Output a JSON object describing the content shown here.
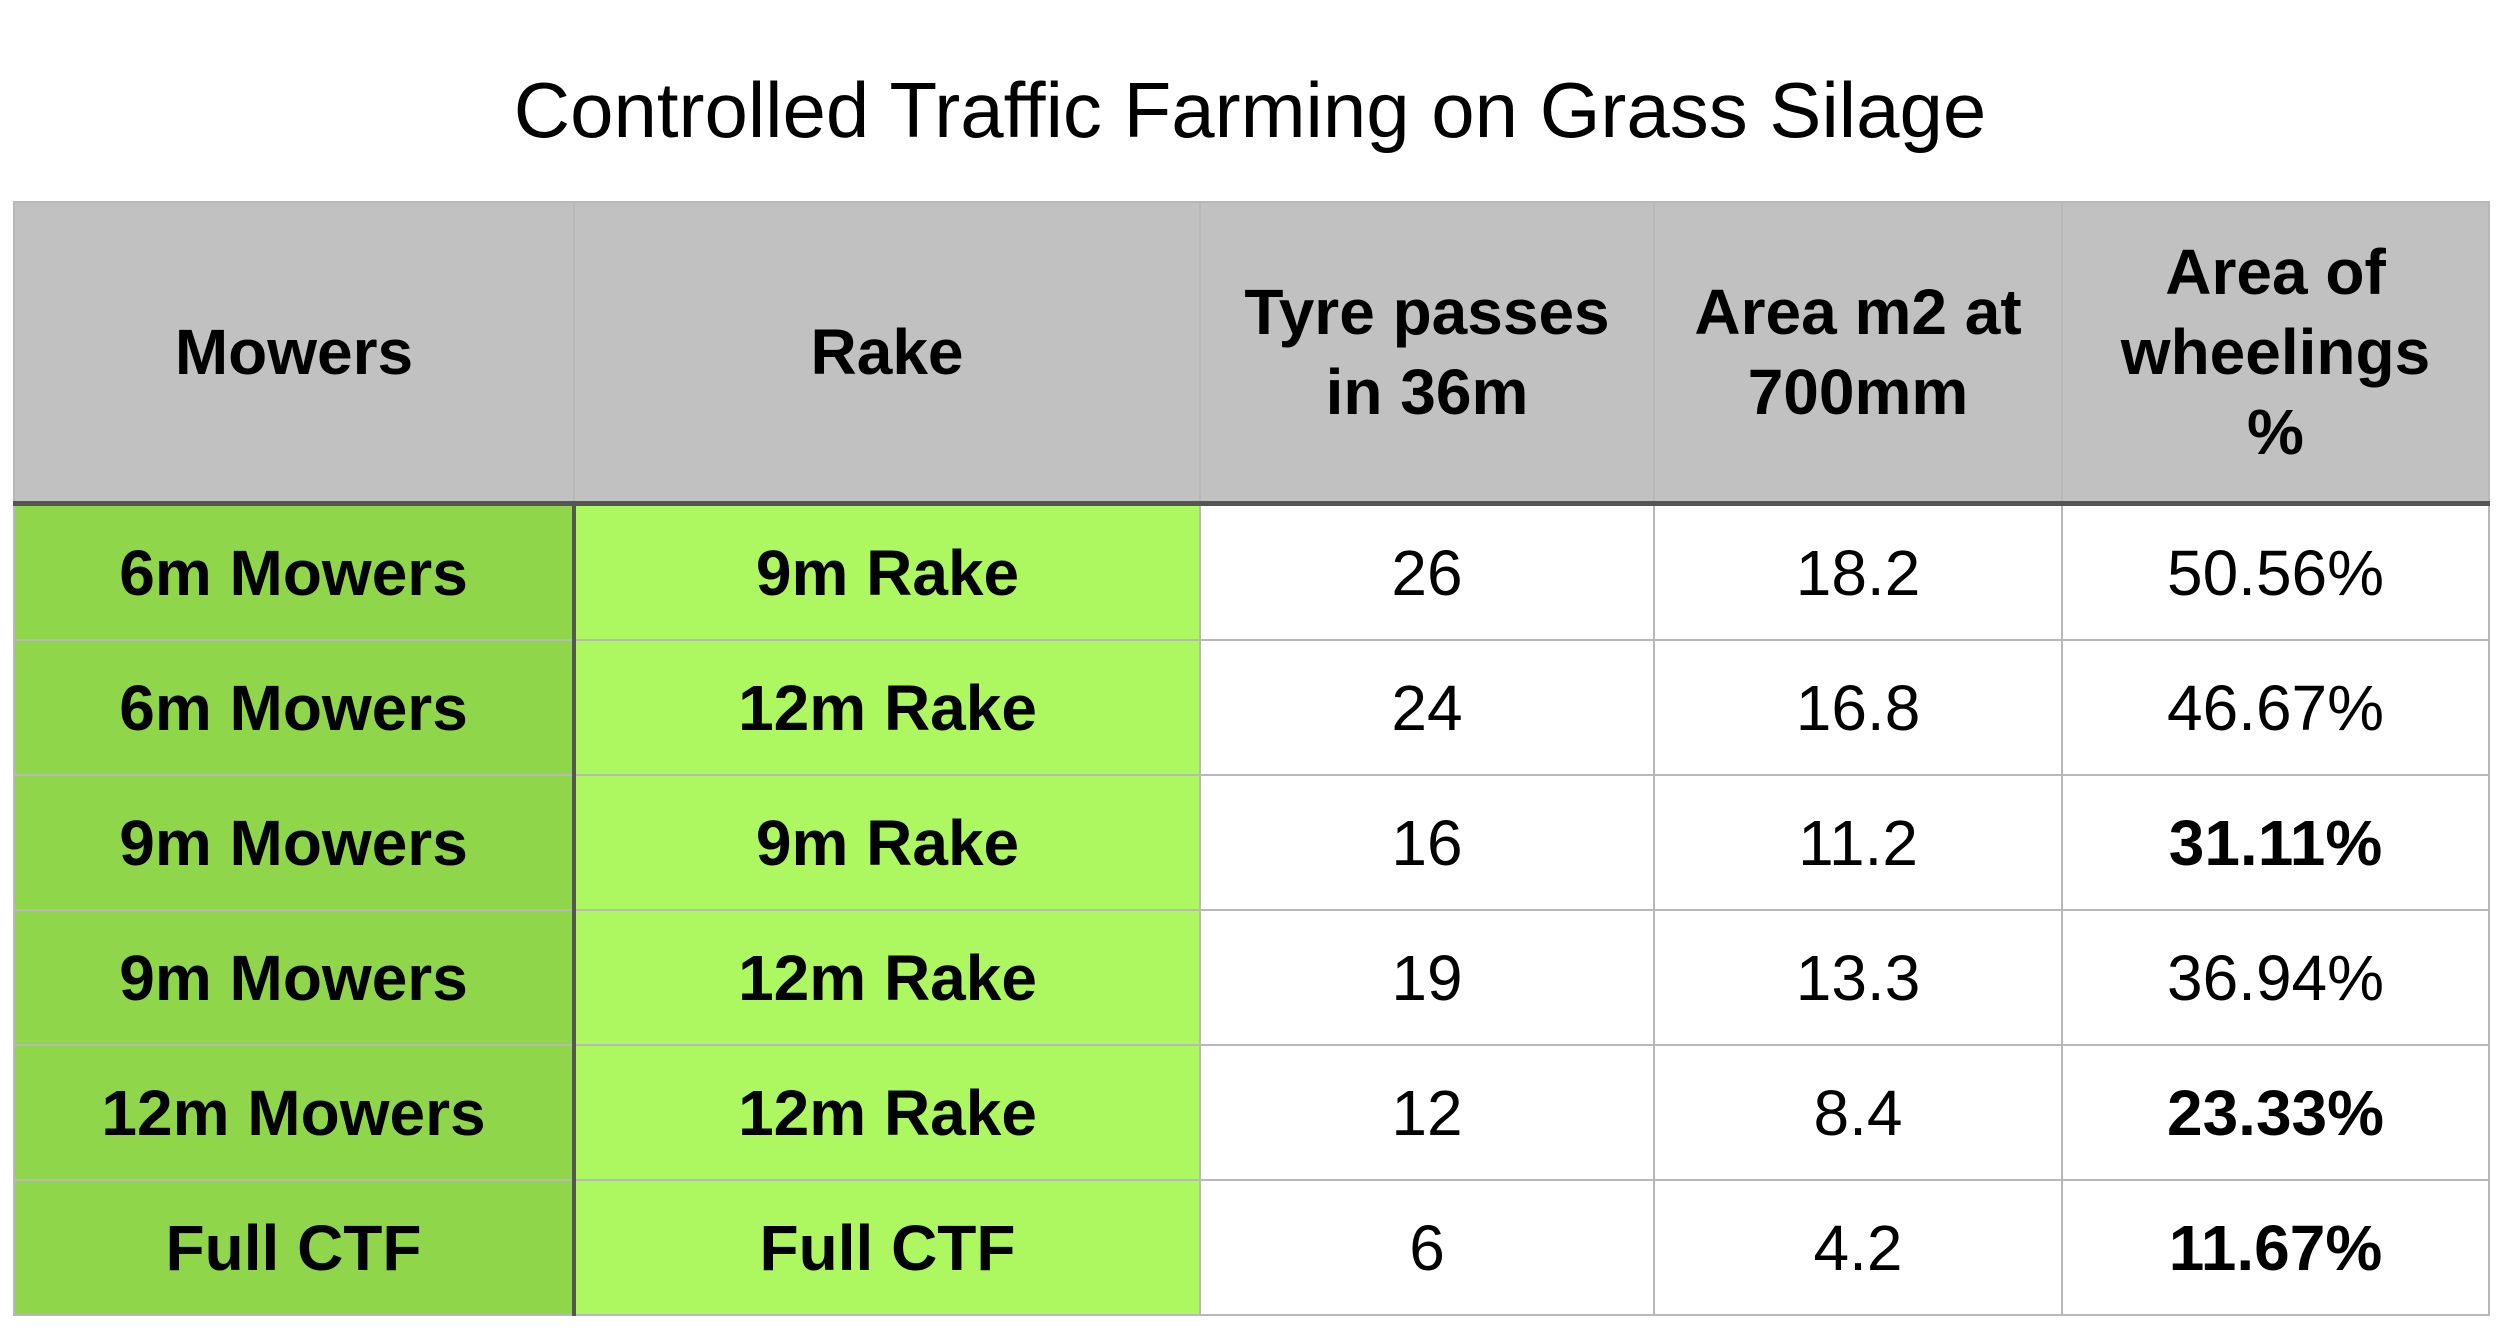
{
  "chart_data": {
    "type": "table",
    "title": "Controlled Traffic Farming on Grass Silage",
    "columns": [
      "Mowers",
      "Rake",
      "Tyre passes in 36m",
      "Area m2 at 700mm",
      "Area of wheelings %"
    ],
    "header_lines": {
      "mowers": [
        "Mowers"
      ],
      "rake": [
        "Rake"
      ],
      "tyre": [
        "Tyre passes",
        "in 36m"
      ],
      "area": [
        "Area m2 at",
        "700mm"
      ],
      "wheel": [
        "Area of",
        "wheelings",
        "%"
      ]
    },
    "rows": [
      {
        "mowers": "6m Mowers",
        "rake": "9m Rake",
        "tyre_passes": "26",
        "area_m2": "18.2",
        "wheelings_pct": "50.56%",
        "highlight": false
      },
      {
        "mowers": "6m Mowers",
        "rake": "12m Rake",
        "tyre_passes": "24",
        "area_m2": "16.8",
        "wheelings_pct": "46.67%",
        "highlight": false
      },
      {
        "mowers": "9m Mowers",
        "rake": "9m Rake",
        "tyre_passes": "16",
        "area_m2": "11.2",
        "wheelings_pct": "31.11%",
        "highlight": true
      },
      {
        "mowers": "9m Mowers",
        "rake": "12m Rake",
        "tyre_passes": "19",
        "area_m2": "13.3",
        "wheelings_pct": "36.94%",
        "highlight": false
      },
      {
        "mowers": "12m Mowers",
        "rake": "12m Rake",
        "tyre_passes": "12",
        "area_m2": "8.4",
        "wheelings_pct": "23.33%",
        "highlight": true
      },
      {
        "mowers": "Full CTF",
        "rake": "Full CTF",
        "tyre_passes": "6",
        "area_m2": "4.2",
        "wheelings_pct": "11.67%",
        "highlight": true
      }
    ],
    "colors": {
      "header_bg": "#c0c1c0",
      "mowers_bg": "#8fd64b",
      "rake_bg": "#adf761",
      "value_bg": "#ffffff",
      "grid": "#b8b8b8"
    }
  }
}
